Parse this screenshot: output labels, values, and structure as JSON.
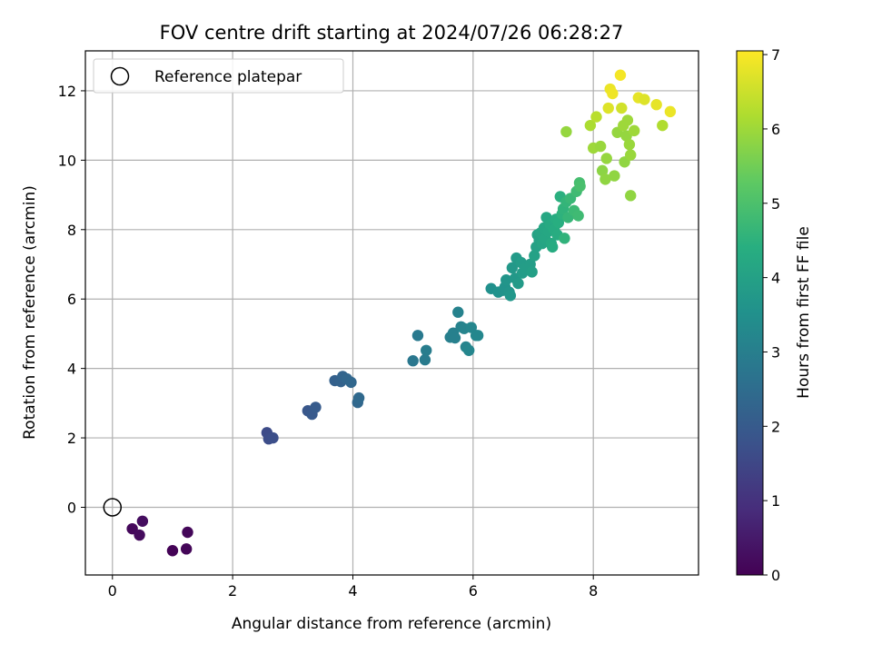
{
  "chart_data": {
    "type": "scatter",
    "title": "FOV centre drift starting at 2024/07/26 06:28:27",
    "xlabel": "Angular distance from reference (arcmin)",
    "ylabel": "Rotation from reference (arcmin)",
    "colorbar_label": "Hours from first FF file",
    "xlim": [
      -0.45,
      9.75
    ],
    "ylim": [
      -1.95,
      13.15
    ],
    "xticks": [
      "0",
      "2",
      "4",
      "6",
      "8"
    ],
    "yticks": [
      "0",
      "2",
      "4",
      "6",
      "8",
      "10",
      "12"
    ],
    "colorbar_ticks": [
      "0",
      "1",
      "2",
      "3",
      "4",
      "5",
      "6",
      "7"
    ],
    "colorbar_range": [
      0,
      7.05
    ],
    "colormap": "viridis",
    "grid": true,
    "legend": {
      "placement": "top-left",
      "entries": [
        "Reference platepar"
      ]
    },
    "reference_point": {
      "x": 0,
      "y": 0
    },
    "points": [
      [
        0.33,
        -0.62,
        0.15
      ],
      [
        0.45,
        -0.8,
        0.2
      ],
      [
        0.5,
        -0.4,
        0.25
      ],
      [
        1.0,
        -1.25,
        0.05
      ],
      [
        1.23,
        -1.2,
        0.1
      ],
      [
        1.25,
        -0.72,
        0.12
      ],
      [
        2.57,
        2.15,
        1.6
      ],
      [
        2.6,
        1.97,
        1.65
      ],
      [
        2.67,
        2.0,
        1.7
      ],
      [
        3.25,
        2.78,
        1.9
      ],
      [
        3.32,
        2.68,
        1.95
      ],
      [
        3.38,
        2.88,
        2.0
      ],
      [
        3.7,
        3.65,
        2.15
      ],
      [
        3.8,
        3.62,
        2.2
      ],
      [
        3.83,
        3.77,
        2.25
      ],
      [
        3.9,
        3.7,
        2.3
      ],
      [
        3.97,
        3.6,
        2.35
      ],
      [
        4.08,
        3.02,
        2.35
      ],
      [
        4.1,
        3.15,
        2.4
      ],
      [
        5.0,
        4.22,
        2.8
      ],
      [
        5.08,
        4.95,
        2.85
      ],
      [
        5.2,
        4.25,
        2.9
      ],
      [
        5.22,
        4.52,
        2.95
      ],
      [
        5.62,
        4.9,
        3.0
      ],
      [
        5.67,
        5.02,
        3.05
      ],
      [
        5.7,
        4.88,
        3.05
      ],
      [
        5.75,
        5.62,
        3.1
      ],
      [
        5.8,
        5.2,
        3.1
      ],
      [
        5.85,
        5.15,
        3.15
      ],
      [
        5.88,
        4.62,
        3.15
      ],
      [
        5.93,
        4.52,
        3.2
      ],
      [
        5.97,
        5.18,
        3.2
      ],
      [
        6.05,
        4.95,
        3.25
      ],
      [
        6.08,
        4.95,
        3.25
      ],
      [
        6.3,
        6.3,
        3.5
      ],
      [
        6.42,
        6.2,
        3.55
      ],
      [
        6.5,
        6.25,
        3.6
      ],
      [
        6.53,
        6.35,
        3.6
      ],
      [
        6.55,
        6.55,
        3.65
      ],
      [
        6.6,
        6.2,
        3.65
      ],
      [
        6.62,
        6.1,
        3.7
      ],
      [
        6.65,
        6.9,
        3.75
      ],
      [
        6.7,
        6.6,
        3.75
      ],
      [
        6.72,
        7.18,
        3.8
      ],
      [
        6.75,
        6.45,
        3.8
      ],
      [
        6.8,
        7.05,
        3.85
      ],
      [
        6.82,
        6.75,
        3.85
      ],
      [
        6.88,
        6.9,
        3.9
      ],
      [
        6.95,
        7.0,
        3.9
      ],
      [
        6.98,
        6.78,
        3.95
      ],
      [
        7.02,
        7.25,
        4.0
      ],
      [
        7.05,
        7.5,
        4.0
      ],
      [
        7.07,
        7.85,
        4.05
      ],
      [
        7.1,
        7.7,
        4.05
      ],
      [
        7.12,
        7.9,
        4.1
      ],
      [
        7.15,
        7.6,
        4.1
      ],
      [
        7.18,
        8.05,
        4.15
      ],
      [
        7.2,
        7.75,
        4.15
      ],
      [
        7.22,
        8.35,
        4.2
      ],
      [
        7.25,
        7.95,
        4.2
      ],
      [
        7.28,
        8.15,
        4.25
      ],
      [
        7.3,
        7.6,
        4.25
      ],
      [
        7.32,
        7.5,
        4.3
      ],
      [
        7.35,
        8.0,
        4.3
      ],
      [
        7.38,
        8.3,
        4.35
      ],
      [
        7.4,
        7.85,
        4.35
      ],
      [
        7.42,
        8.2,
        4.4
      ],
      [
        7.45,
        8.95,
        4.45
      ],
      [
        7.48,
        8.45,
        4.5
      ],
      [
        7.5,
        8.6,
        4.55
      ],
      [
        7.52,
        7.75,
        4.55
      ],
      [
        7.55,
        8.8,
        4.6
      ],
      [
        7.58,
        8.35,
        4.65
      ],
      [
        7.62,
        8.9,
        4.7
      ],
      [
        7.68,
        8.55,
        4.75
      ],
      [
        7.72,
        9.1,
        4.8
      ],
      [
        7.75,
        8.4,
        4.8
      ],
      [
        7.77,
        9.35,
        4.9
      ],
      [
        7.78,
        9.25,
        4.95
      ],
      [
        7.55,
        10.82,
        5.9
      ],
      [
        7.95,
        11.0,
        6.15
      ],
      [
        8.05,
        11.25,
        6.3
      ],
      [
        8.0,
        10.35,
        6.0
      ],
      [
        8.12,
        10.4,
        5.95
      ],
      [
        8.15,
        9.7,
        5.8
      ],
      [
        8.2,
        9.45,
        5.85
      ],
      [
        8.22,
        10.05,
        5.9
      ],
      [
        8.25,
        11.5,
        6.7
      ],
      [
        8.28,
        12.05,
        6.85
      ],
      [
        8.32,
        11.92,
        6.9
      ],
      [
        8.35,
        9.55,
        5.85
      ],
      [
        8.4,
        10.8,
        5.9
      ],
      [
        8.45,
        12.45,
        6.95
      ],
      [
        8.47,
        11.5,
        6.55
      ],
      [
        8.5,
        11.0,
        6.0
      ],
      [
        8.52,
        9.95,
        5.85
      ],
      [
        8.55,
        10.7,
        5.9
      ],
      [
        8.57,
        11.15,
        6.0
      ],
      [
        8.6,
        10.45,
        5.95
      ],
      [
        8.62,
        10.15,
        5.95
      ],
      [
        8.62,
        8.98,
        5.85
      ],
      [
        8.68,
        10.85,
        6.0
      ],
      [
        8.75,
        11.8,
        6.8
      ],
      [
        8.85,
        11.75,
        6.7
      ],
      [
        9.05,
        11.6,
        6.8
      ],
      [
        9.15,
        11.0,
        6.2
      ],
      [
        9.28,
        11.4,
        6.85
      ]
    ]
  }
}
